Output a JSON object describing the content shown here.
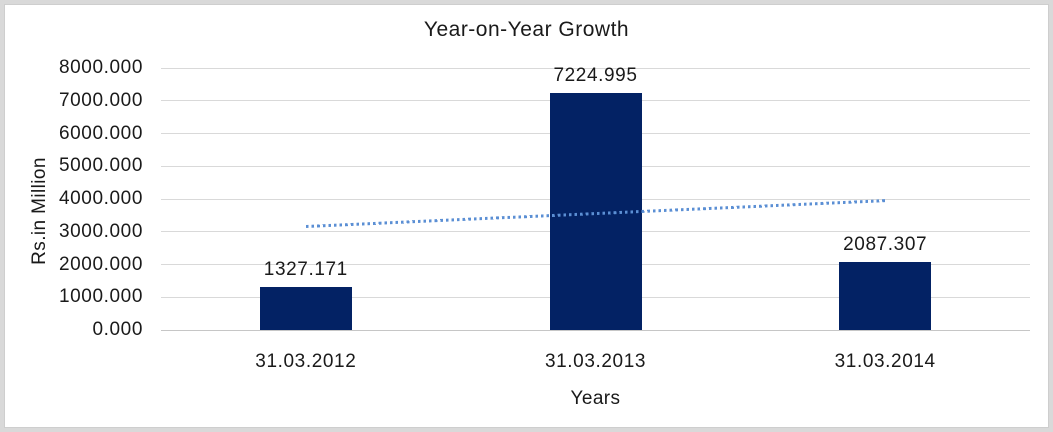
{
  "chart_data": {
    "type": "bar",
    "title": "Year-on-Year Growth",
    "xlabel": "Years",
    "ylabel": "Rs.in Million",
    "categories": [
      "31.03.2012",
      "31.03.2013",
      "31.03.2014"
    ],
    "values": [
      1327.171,
      7224.995,
      2087.307
    ],
    "data_labels": [
      "1327.171",
      "7224.995",
      "2087.307"
    ],
    "ylim": [
      0,
      8000
    ],
    "ytick_step": 1000,
    "ytick_labels": [
      "0.000",
      "1000.000",
      "2000.000",
      "3000.000",
      "4000.000",
      "5000.000",
      "6000.000",
      "7000.000",
      "8000.000"
    ],
    "grid": true,
    "legend": "none",
    "trendline": {
      "type": "linear",
      "line_style": "dotted",
      "start_value": 3150,
      "end_value": 3940,
      "color": "#5b8fd4"
    },
    "colors": {
      "bar": "#032264",
      "gridline": "#d9d9d9",
      "zero_line": "#c6c6c6",
      "text": "#1a1a1a",
      "frame_border": "#d9d9d9",
      "background": "#ffffff"
    }
  }
}
